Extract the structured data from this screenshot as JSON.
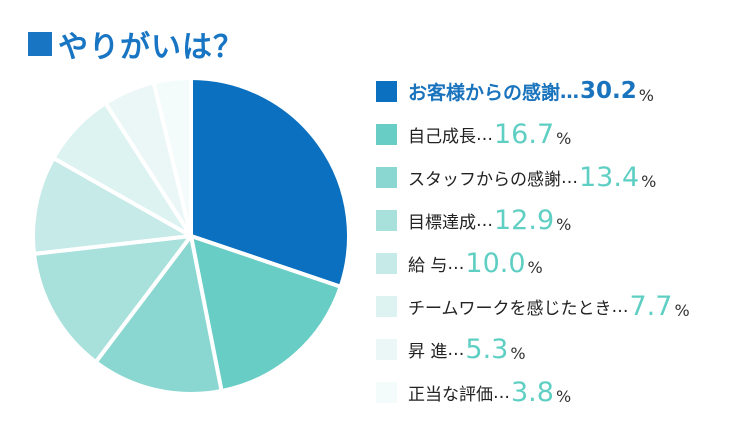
{
  "title": "やりがいは？",
  "chart_data": {
    "type": "pie",
    "title": "やりがいは？",
    "slices": [
      {
        "label": "お客様からの感謝",
        "value": 30.2,
        "color": "#0b70bf"
      },
      {
        "label": "自己成長",
        "value": 16.7,
        "color": "#68cdc4"
      },
      {
        "label": "スタッフからの感謝",
        "value": 13.4,
        "color": "#89d7d0"
      },
      {
        "label": "目標達成",
        "value": 12.9,
        "color": "#a8e0dc"
      },
      {
        "label": "給 与",
        "value": 10.0,
        "color": "#c6eae7"
      },
      {
        "label": "チームワークを感じたとき",
        "value": 7.7,
        "color": "#dcf3f1"
      },
      {
        "label": "昇 進",
        "value": 5.3,
        "color": "#eaf7f6"
      },
      {
        "label": "正当な評価",
        "value": 3.8,
        "color": "#f3fbfb"
      }
    ],
    "value_text": [
      "30.2",
      "16.7",
      "13.4",
      "12.9",
      "10.0",
      "7.7",
      "5.3",
      "3.8"
    ],
    "unit": "%",
    "legend_position": "right"
  }
}
